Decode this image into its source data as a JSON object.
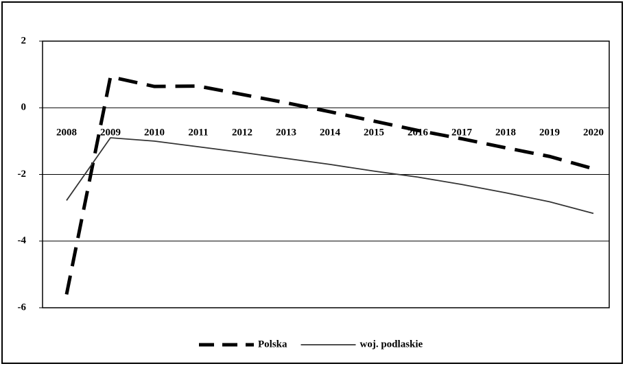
{
  "chart_data": {
    "type": "line",
    "categories": [
      "2008",
      "2009",
      "2010",
      "2011",
      "2012",
      "2013",
      "2014",
      "2015",
      "2016",
      "2017",
      "2018",
      "2019",
      "2020"
    ],
    "series": [
      {
        "name": "Polska",
        "color": "#000000",
        "dashed": true,
        "values": [
          -5.6,
          0.93,
          0.64,
          0.65,
          0.4,
          0.15,
          -0.12,
          -0.4,
          -0.68,
          -0.93,
          -1.2,
          -1.46,
          -1.83
        ]
      },
      {
        "name": "woj. podlaskie",
        "color": "#333333",
        "dashed": false,
        "values": [
          -2.78,
          -0.9,
          -1.0,
          -1.17,
          -1.34,
          -1.52,
          -1.7,
          -1.9,
          -2.08,
          -2.3,
          -2.55,
          -2.82,
          -3.17
        ]
      }
    ],
    "ylim": [
      -6,
      2
    ],
    "yticks": [
      -6,
      -4,
      -2,
      0,
      2
    ],
    "grid": true,
    "legend": "bottom"
  }
}
